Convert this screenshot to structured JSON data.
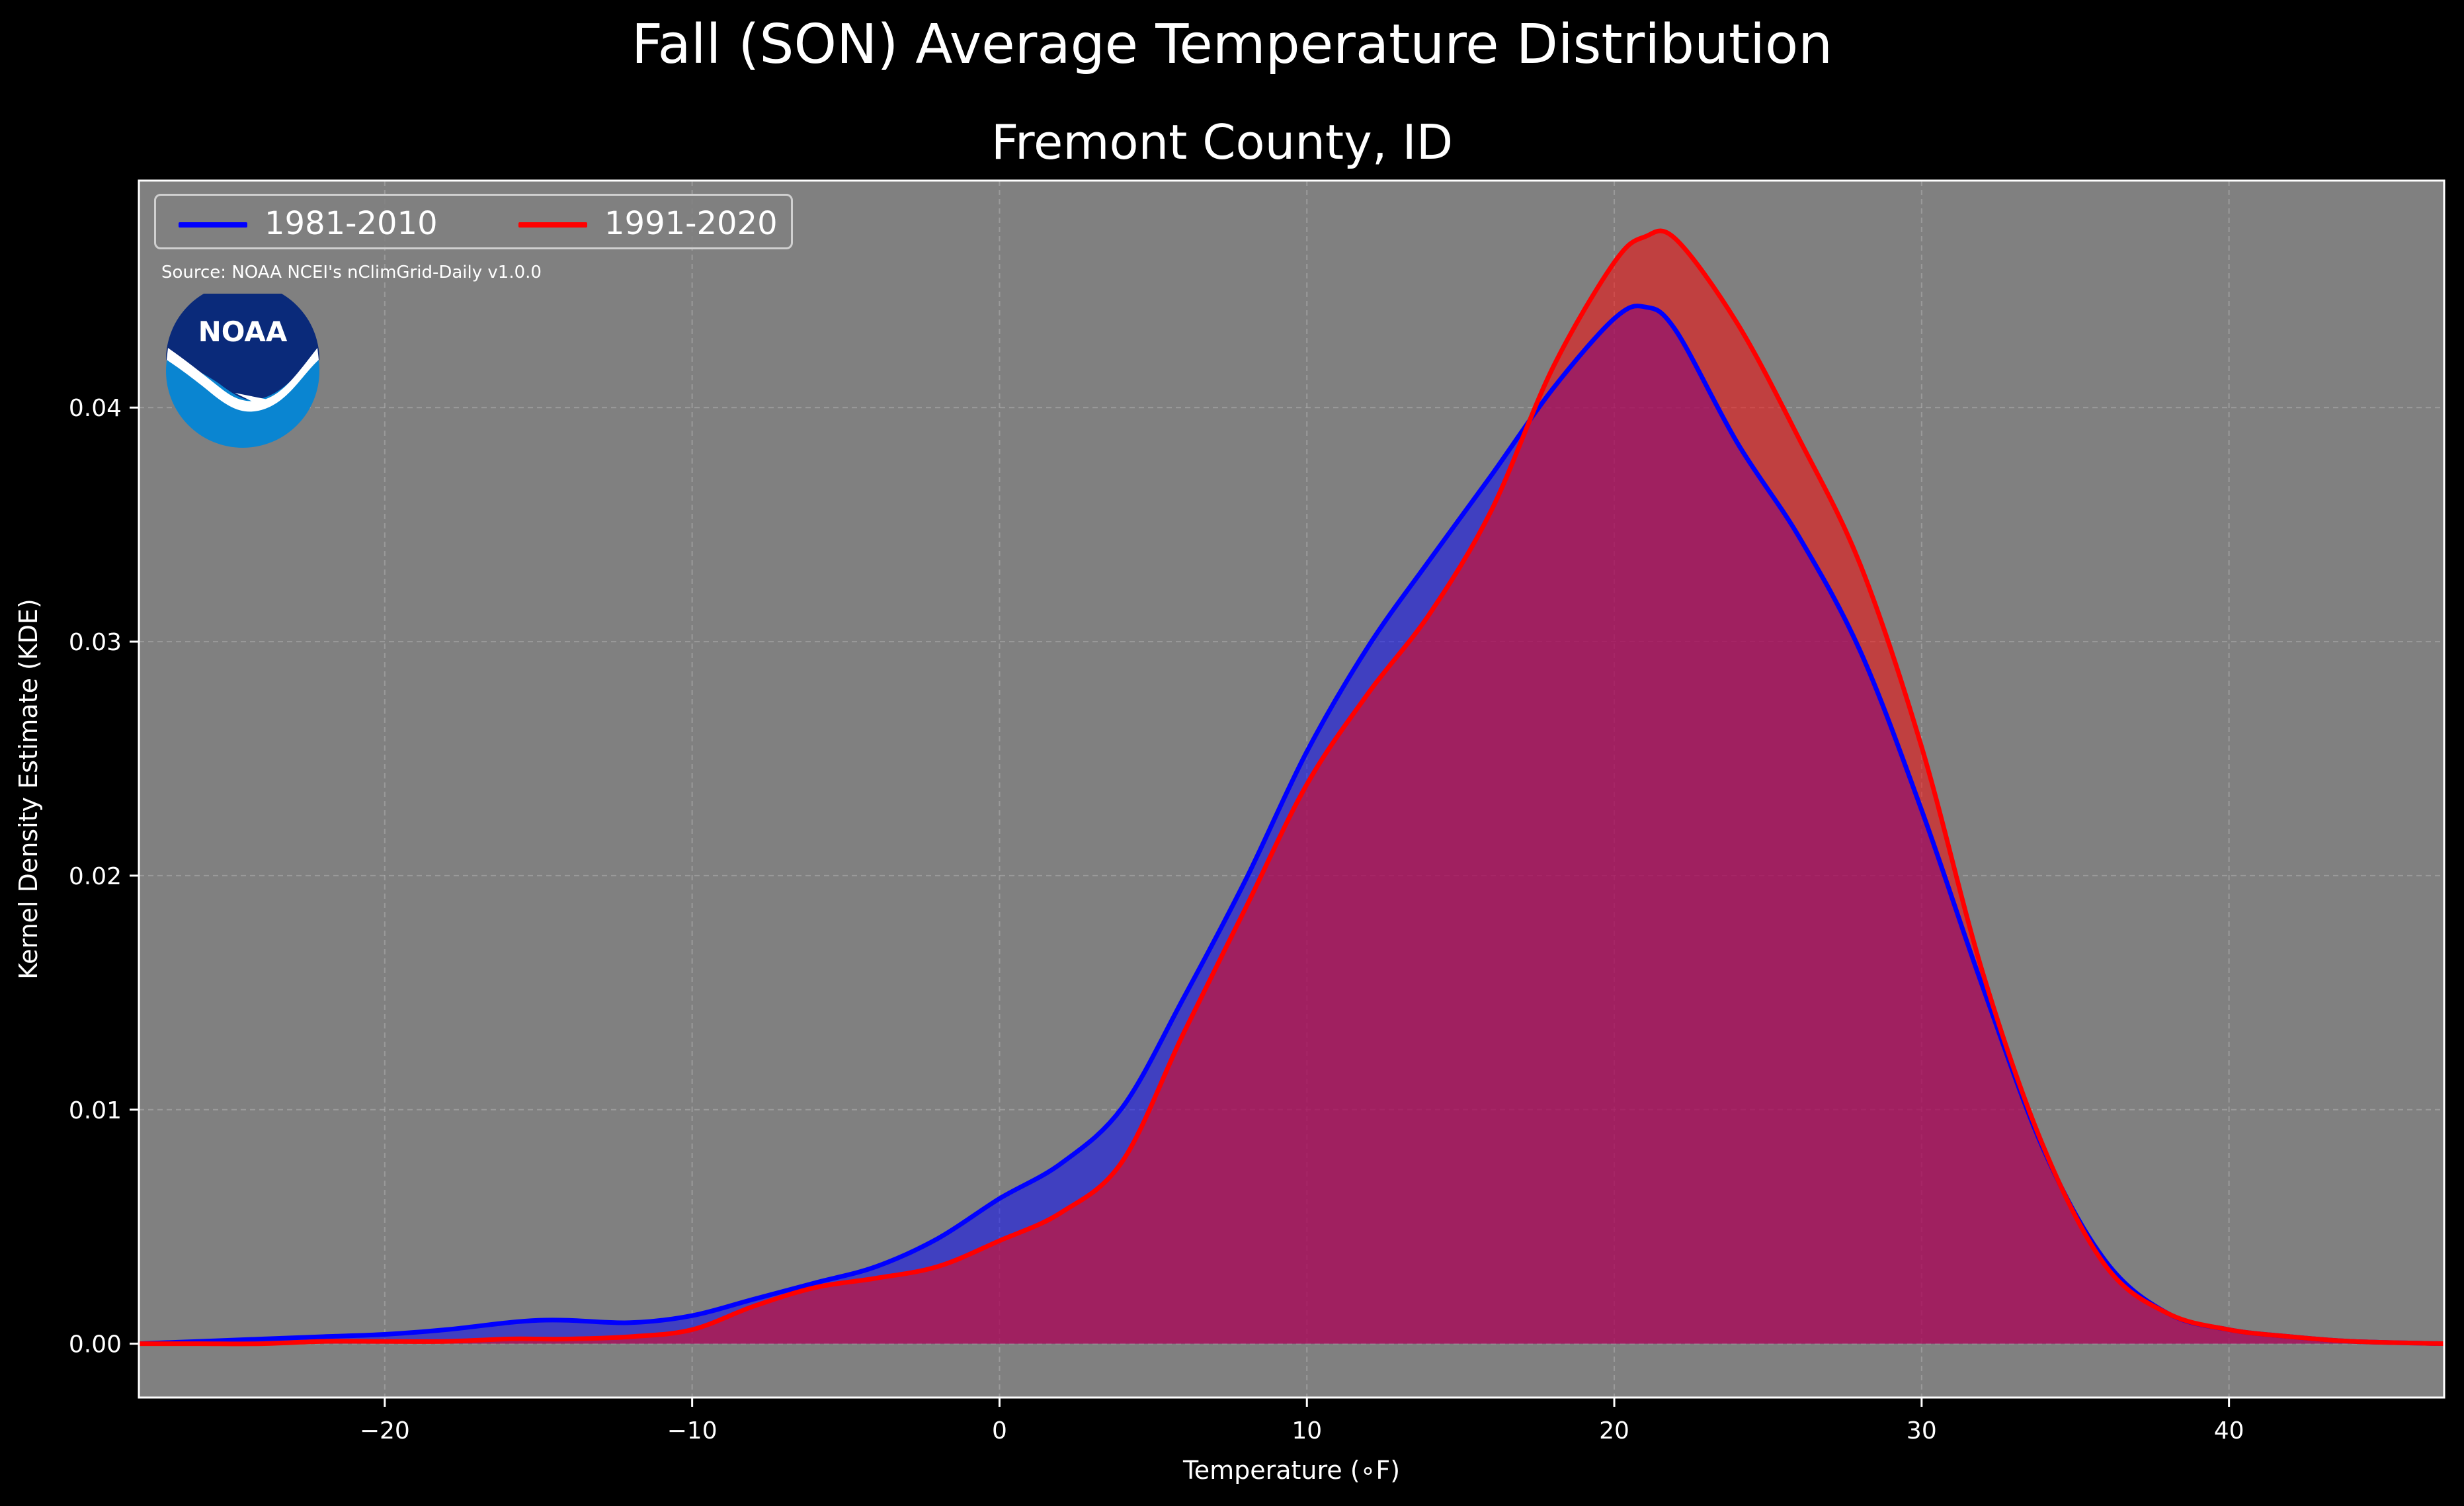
{
  "suptitle": "Fall (SON) Average Temperature Distribution",
  "source_note": "Source: NOAA NCEI's nClimGrid-Daily v1.0.0",
  "logo_text": "NOAA",
  "colors": {
    "background": "#000000",
    "plot_bg": "#808080",
    "grid": "#b0b0b0",
    "series_1981": "#0000ff",
    "series_1991": "#ff0000",
    "logo_dark": "#0a2a7a",
    "logo_light": "#0a85d1"
  },
  "chart_data": {
    "type": "area",
    "title": "Fremont County, ID",
    "xlabel": "Temperature ($^\\circ$F)",
    "xlabel_display": "Temperature (∘F)",
    "ylabel": "Kernel Density Estimate (KDE)",
    "xlim": [
      -28,
      47
    ],
    "ylim": [
      -0.0023,
      0.0497
    ],
    "xticks": [
      -20,
      -10,
      0,
      10,
      20,
      30,
      40
    ],
    "xtick_labels": [
      "−20",
      "−10",
      "0",
      "10",
      "20",
      "30",
      "40"
    ],
    "yticks": [
      0.0,
      0.01,
      0.02,
      0.03,
      0.04
    ],
    "ytick_labels": [
      "0.00",
      "0.01",
      "0.02",
      "0.03",
      "0.04"
    ],
    "grid": true,
    "legend_position": "top-left",
    "series": [
      {
        "name": "1981-2010",
        "color": "#0000ff",
        "x": [
          -28,
          -26,
          -24,
          -22,
          -20,
          -18,
          -16,
          -15,
          -14,
          -12,
          -10,
          -8,
          -6,
          -4,
          -2,
          0,
          2,
          4,
          6,
          8,
          10,
          12,
          14,
          16,
          18,
          20,
          21,
          22,
          24,
          26,
          28,
          30,
          32,
          34,
          36,
          38,
          40,
          42,
          44,
          47
        ],
        "y": [
          0.0,
          0.0001,
          0.0002,
          0.0003,
          0.0004,
          0.0006,
          0.0009,
          0.001,
          0.001,
          0.0009,
          0.0012,
          0.0019,
          0.0026,
          0.0033,
          0.0045,
          0.0062,
          0.0077,
          0.0101,
          0.0148,
          0.0198,
          0.0253,
          0.0298,
          0.0335,
          0.0371,
          0.0408,
          0.0438,
          0.0443,
          0.0433,
          0.0385,
          0.0345,
          0.0296,
          0.0228,
          0.0152,
          0.0082,
          0.0035,
          0.0013,
          0.0006,
          0.0003,
          0.0001,
          0.0
        ]
      },
      {
        "name": "1991-2020",
        "color": "#ff0000",
        "x": [
          -28,
          -26,
          -24,
          -22,
          -20,
          -18,
          -16,
          -15,
          -14,
          -12,
          -10,
          -8,
          -6,
          -4,
          -2,
          0,
          2,
          4,
          6,
          8,
          10,
          12,
          14,
          16,
          18,
          20,
          21,
          22,
          24,
          26,
          28,
          30,
          32,
          34,
          36,
          38,
          40,
          42,
          44,
          47
        ],
        "y": [
          0.0,
          0.0,
          0.0,
          0.0001,
          0.0001,
          0.0001,
          0.0002,
          0.0002,
          0.0002,
          0.0003,
          0.0006,
          0.0016,
          0.0024,
          0.0028,
          0.0033,
          0.0044,
          0.0056,
          0.0078,
          0.0133,
          0.0186,
          0.0239,
          0.0278,
          0.0312,
          0.0356,
          0.0417,
          0.0462,
          0.0473,
          0.0472,
          0.0436,
          0.0387,
          0.0333,
          0.0255,
          0.0158,
          0.0083,
          0.0033,
          0.0013,
          0.0006,
          0.0003,
          0.0001,
          0.0
        ]
      }
    ]
  }
}
